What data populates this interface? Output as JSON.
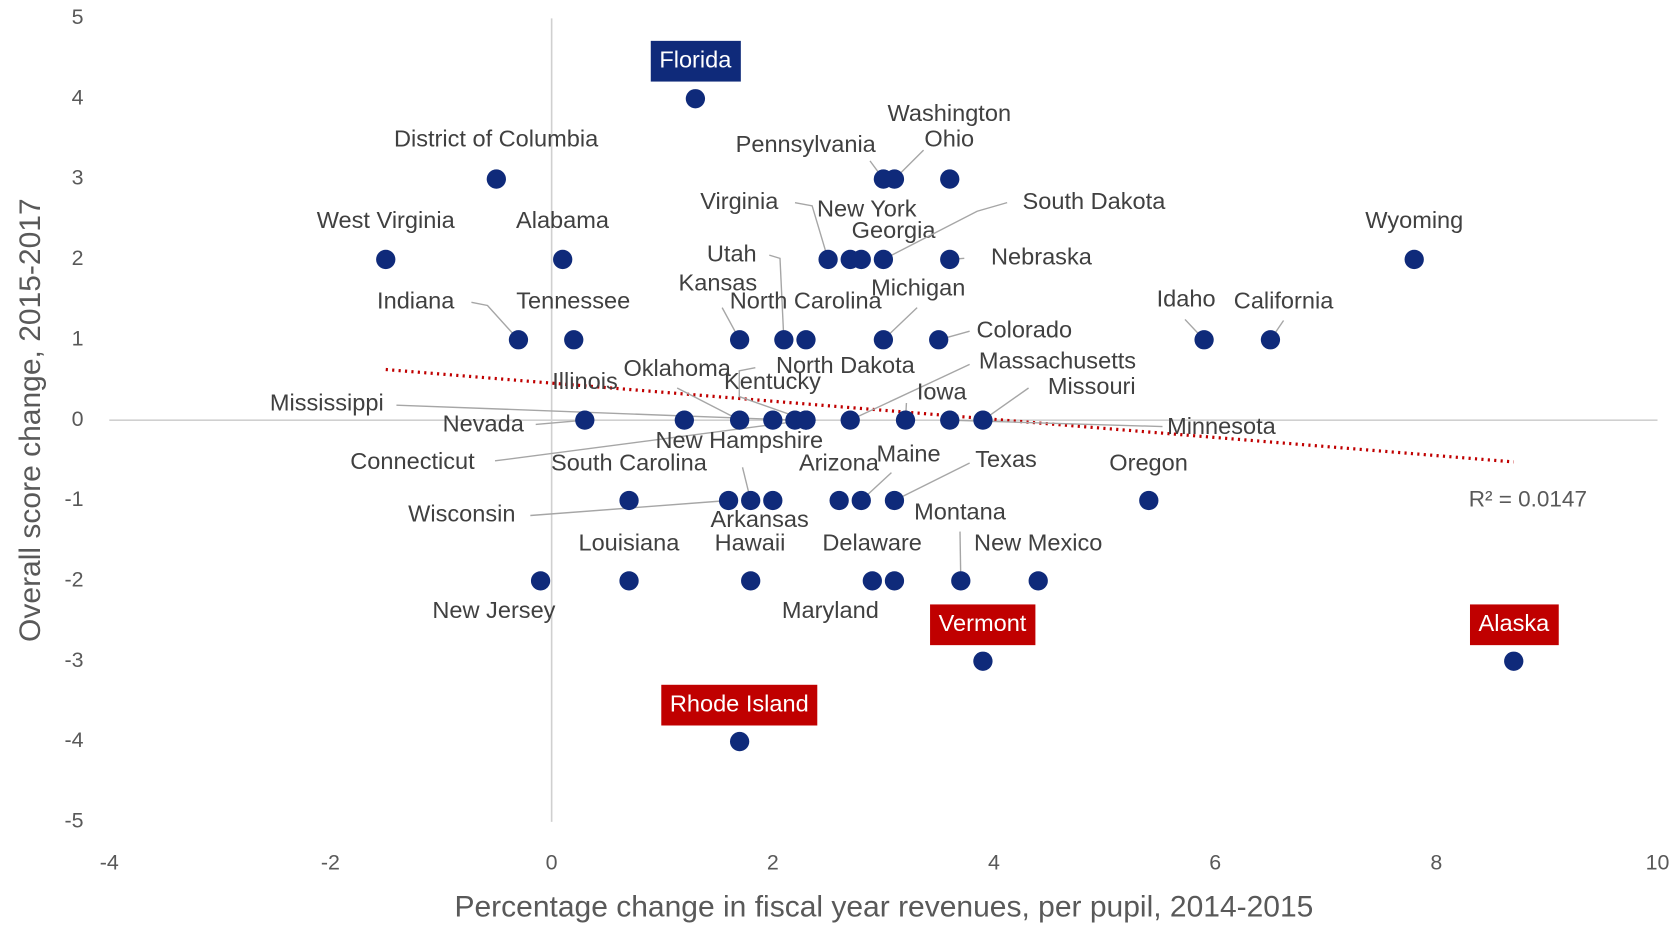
{
  "chart_data": {
    "type": "scatter",
    "x_label": "Percentage change in fiscal year revenues, per pupil, 2014-2015",
    "y_label": "Overall score change, 2015-2017",
    "xlim": [
      -4,
      10
    ],
    "xticks": [
      -4,
      -2,
      0,
      2,
      4,
      6,
      8,
      10
    ],
    "ylim": [
      -5,
      5
    ],
    "yticks": [
      -5,
      -4,
      -3,
      -2,
      -1,
      0,
      1,
      2,
      3,
      4,
      5
    ],
    "color": "#0f2a7a",
    "trendline": {
      "x": [
        -1.5,
        8.7
      ],
      "y": [
        0.63,
        -0.52
      ],
      "color": "#c00000",
      "annotation": "R² = 0.0147"
    },
    "points": [
      {
        "label": "Florida",
        "x": 1.3,
        "y": 4,
        "label_bg": "#0f2a7a"
      },
      {
        "label": "District of Columbia",
        "x": -0.5,
        "y": 3
      },
      {
        "label": "Pennsylvania",
        "x": 3.0,
        "y": 3
      },
      {
        "label": "Washington",
        "x": 3.1,
        "y": 3
      },
      {
        "label": "Ohio",
        "x": 3.6,
        "y": 3
      },
      {
        "label": "West Virginia",
        "x": -1.5,
        "y": 2
      },
      {
        "label": "Alabama",
        "x": 0.1,
        "y": 2
      },
      {
        "label": "Virginia",
        "x": 2.5,
        "y": 2
      },
      {
        "label": "New York",
        "x": 2.7,
        "y": 2
      },
      {
        "label": "Georgia",
        "x": 2.8,
        "y": 2
      },
      {
        "label": "South Dakota",
        "x": 3.0,
        "y": 2
      },
      {
        "label": "Nebraska",
        "x": 3.6,
        "y": 2
      },
      {
        "label": "Wyoming",
        "x": 7.8,
        "y": 2
      },
      {
        "label": "Indiana",
        "x": -0.3,
        "y": 1
      },
      {
        "label": "Tennessee",
        "x": 0.2,
        "y": 1
      },
      {
        "label": "Kansas",
        "x": 1.7,
        "y": 1
      },
      {
        "label": "Utah",
        "x": 2.1,
        "y": 1
      },
      {
        "label": "North Carolina",
        "x": 2.3,
        "y": 1
      },
      {
        "label": "Michigan",
        "x": 3.0,
        "y": 1
      },
      {
        "label": "Colorado",
        "x": 3.5,
        "y": 1
      },
      {
        "label": "Idaho",
        "x": 5.9,
        "y": 1
      },
      {
        "label": "California",
        "x": 6.5,
        "y": 1
      },
      {
        "label": "Nevada",
        "x": 0.3,
        "y": 0
      },
      {
        "label": "Illinois",
        "x": 1.2,
        "y": 0
      },
      {
        "label": "Oklahoma",
        "x": 1.7,
        "y": 0
      },
      {
        "label": "Kentucky",
        "x": 2.0,
        "y": 0
      },
      {
        "label": "Mississippi",
        "x": 2.2,
        "y": 0
      },
      {
        "label": "Connecticut",
        "x": 2.3,
        "y": 0
      },
      {
        "label": "North Dakota",
        "x": 2.3,
        "y": 0
      },
      {
        "label": "Massachusetts",
        "x": 2.7,
        "y": 0
      },
      {
        "label": "Iowa",
        "x": 3.2,
        "y": 0
      },
      {
        "label": "Minnesota",
        "x": 3.6,
        "y": 0
      },
      {
        "label": "Missouri",
        "x": 3.9,
        "y": 0
      },
      {
        "label": "South Carolina",
        "x": 0.7,
        "y": -1
      },
      {
        "label": "Wisconsin",
        "x": 1.6,
        "y": -1
      },
      {
        "label": "New Hampshire",
        "x": 1.8,
        "y": -1
      },
      {
        "label": "Arkansas",
        "x": 2.0,
        "y": -1
      },
      {
        "label": "Arizona",
        "x": 2.6,
        "y": -1
      },
      {
        "label": "Maine",
        "x": 2.8,
        "y": -1
      },
      {
        "label": "Texas",
        "x": 3.1,
        "y": -1
      },
      {
        "label": "Oregon",
        "x": 5.4,
        "y": -1
      },
      {
        "label": "New Jersey",
        "x": -0.1,
        "y": -2
      },
      {
        "label": "Louisiana",
        "x": 0.7,
        "y": -2
      },
      {
        "label": "Hawaii",
        "x": 1.8,
        "y": -2
      },
      {
        "label": "Maryland",
        "x": 2.9,
        "y": -2
      },
      {
        "label": "Delaware",
        "x": 3.1,
        "y": -2
      },
      {
        "label": "Montana",
        "x": 3.7,
        "y": -2
      },
      {
        "label": "New Mexico",
        "x": 4.4,
        "y": -2
      },
      {
        "label": "Vermont",
        "x": 3.9,
        "y": -3,
        "label_bg": "#c00000"
      },
      {
        "label": "Alaska",
        "x": 8.7,
        "y": -3,
        "label_bg": "#c00000"
      },
      {
        "label": "Rhode Island",
        "x": 1.7,
        "y": -4,
        "label_bg": "#c00000"
      }
    ]
  }
}
